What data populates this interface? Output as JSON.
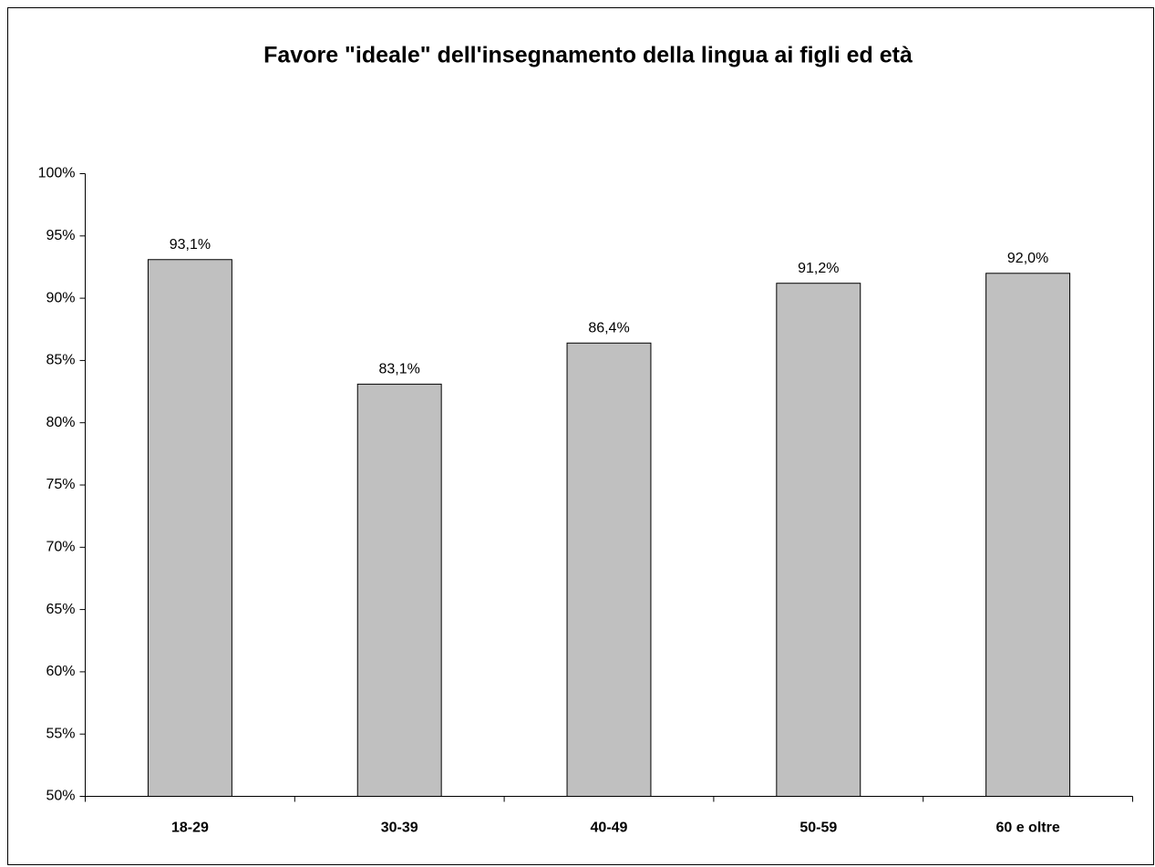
{
  "chart_data": {
    "type": "bar",
    "title": "Favore \"ideale\" dell'insegnamento della lingua ai figli ed età",
    "categories": [
      "18-29",
      "30-39",
      "40-49",
      "50-59",
      "60 e oltre"
    ],
    "values": [
      93.1,
      83.1,
      86.4,
      91.2,
      92.0
    ],
    "value_labels": [
      "93,1%",
      "83,1%",
      "86,4%",
      "91,2%",
      "92,0%"
    ],
    "color": "#c0c0c0",
    "ylim": [
      50,
      100
    ],
    "yticks": [
      {
        "value": 50,
        "label": "50%"
      },
      {
        "value": 55,
        "label": "55%"
      },
      {
        "value": 60,
        "label": "60%"
      },
      {
        "value": 65,
        "label": "65%"
      },
      {
        "value": 70,
        "label": "70%"
      },
      {
        "value": 75,
        "label": "75%"
      },
      {
        "value": 80,
        "label": "80%"
      },
      {
        "value": 85,
        "label": "85%"
      },
      {
        "value": 90,
        "label": "90%"
      },
      {
        "value": 95,
        "label": "95%"
      },
      {
        "value": 100,
        "label": "100%"
      }
    ],
    "grid": false
  }
}
